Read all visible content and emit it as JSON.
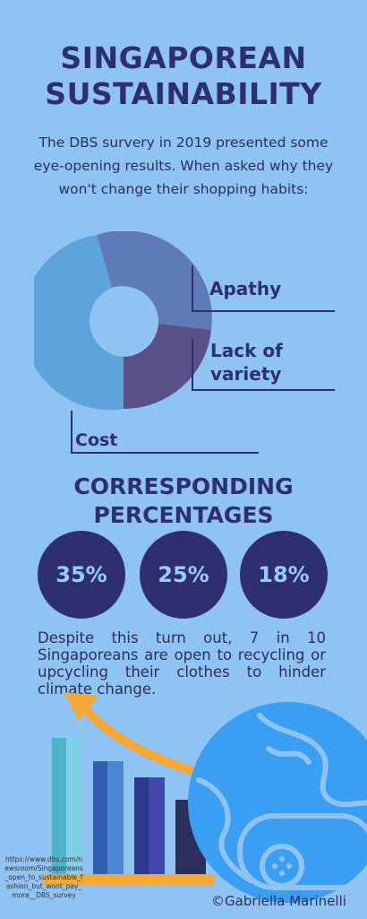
{
  "title_line1": "SINGAPOREAN",
  "title_line2": "SUSTAINABILITY",
  "intro_text": "The DBS survery in 2019 presented some eye-opening results.   When asked why they won't change their shopping habits:",
  "chart_data": {
    "type": "pie",
    "donut": true,
    "categories": [
      "Apathy",
      "Lack of variety",
      "Cost"
    ],
    "colors": [
      "#5f7ab8",
      "#5a4f86",
      "#5ea4dc"
    ],
    "labels": {
      "apathy": "Apathy",
      "variety_line1": "Lack of",
      "variety_line2": "variety",
      "cost": "Cost"
    }
  },
  "subtitle_line1": "CORRESPONDING",
  "subtitle_line2": "PERCENTAGES",
  "percentages": [
    "35%",
    "25%",
    "18%"
  ],
  "paragraph": "Despite this turn out, 7 in 10 Singaporeans are open to recycling or upcycling their clothes to hinder climate change.",
  "source_text": "https://www.dbs.com/newsroom/Singaporeans_open_to_sustainable_fashion_but_wont_pay_more__DBS_survey",
  "copyright": "©Gabriella Marinelli",
  "illustration_colors": {
    "globe": "#3a9ff2",
    "globe_outline": "#8ec3f3",
    "arrow": "#f5a833",
    "base": "#f5a833",
    "bars": [
      "#5ebad1",
      "#3e72c0",
      "#3a46a0",
      "#2c2e5c"
    ]
  }
}
